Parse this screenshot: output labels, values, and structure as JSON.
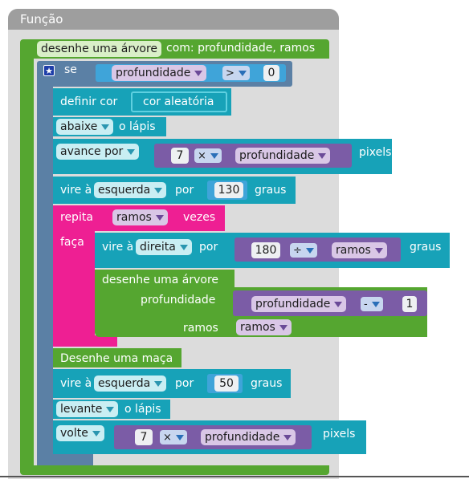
{
  "panel": {
    "title": "Função"
  },
  "function_block": {
    "name": "desenhe uma árvore",
    "params_label": "com: profundidade, ramos"
  },
  "if_block": {
    "keyword": "se",
    "var": "profundidade",
    "op": ">",
    "value": "0"
  },
  "set_color": {
    "label": "definir cor",
    "value": "cor aleatória"
  },
  "pen_down": {
    "option": "abaixe",
    "suffix": "o lápis"
  },
  "move_forward": {
    "option": "avance por",
    "num": "7",
    "op": "×",
    "var": "profundidade",
    "unit": "pixels"
  },
  "turn_left1": {
    "prefix": "vire à",
    "direction": "esquerda",
    "mid": "por",
    "value": "130",
    "unit": "graus"
  },
  "repeat": {
    "label": "repita",
    "var": "ramos",
    "suffix": "vezes",
    "do_label": "faça"
  },
  "turn_right": {
    "prefix": "vire à",
    "direction": "direita",
    "mid": "por",
    "num": "180",
    "op": "÷",
    "var": "ramos",
    "unit": "graus"
  },
  "call_tree": {
    "name": "desenhe uma árvore",
    "param1": "profundidade",
    "arg1_var": "profundidade",
    "arg1_op": "-",
    "arg1_num": "1",
    "param2": "ramos",
    "arg2_var": "ramos"
  },
  "draw_apple": {
    "label": "Desenhe uma maça"
  },
  "turn_left2": {
    "prefix": "vire à",
    "direction": "esquerda",
    "mid": "por",
    "value": "50",
    "unit": "graus"
  },
  "pen_up": {
    "option": "levante",
    "suffix": "o lápis"
  },
  "move_back": {
    "option": "volte",
    "num": "7",
    "op": "×",
    "var": "profundidade",
    "unit": "pixels"
  },
  "colors": {
    "green": "#55a630",
    "blue": "#5b80a5",
    "teal": "#17a2b8",
    "pink": "#ee1f93",
    "purple": "#7b5ca6"
  }
}
